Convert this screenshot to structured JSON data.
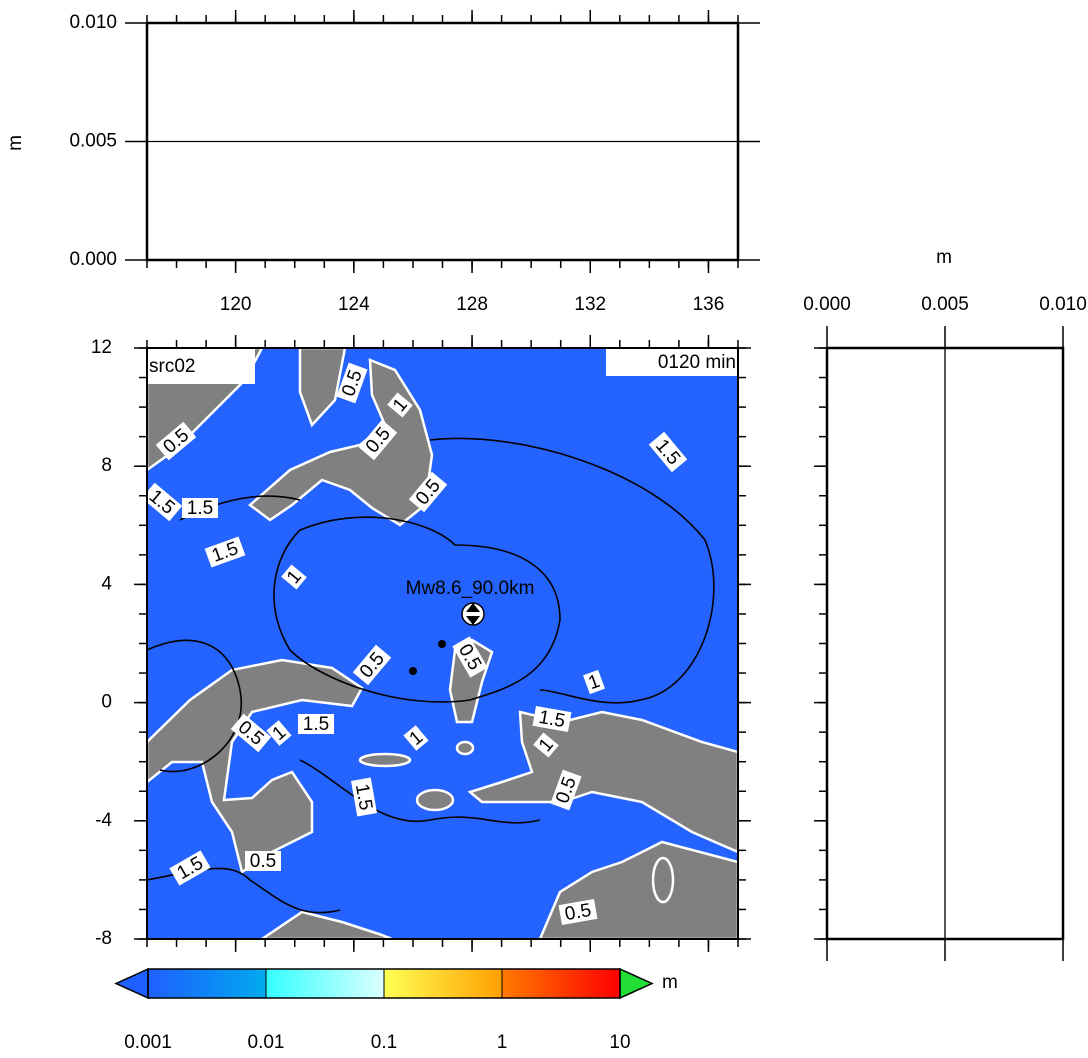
{
  "chart_data": [
    {
      "type": "profile",
      "panel": "top",
      "ylabel": "m",
      "xlim": [
        117,
        137
      ],
      "ylim": [
        0,
        0.01
      ],
      "xticks": [
        120,
        124,
        128,
        132,
        136
      ],
      "yticks": [
        {
          "value": 0,
          "label": "0.000"
        },
        {
          "value": 0.005,
          "label": "0.005"
        },
        {
          "value": 0.01,
          "label": "0.010"
        }
      ],
      "grid": true
    },
    {
      "type": "map",
      "title": "src02",
      "time_label": "0120 min",
      "xlim": [
        117,
        137
      ],
      "ylim": [
        -8,
        12
      ],
      "yticks": [
        -8,
        -4,
        0,
        4,
        8,
        12
      ],
      "source_label": "Mw8.6_90.0km",
      "contour_labels": [
        "0.5",
        "0.5",
        "1",
        "0.5",
        "0.5",
        "1.5",
        "1.5",
        "1.5",
        "1.5",
        "1",
        "0.5",
        "0.5",
        "1",
        "0.5",
        "1",
        "1.5",
        "1",
        "1.5",
        "1",
        "1.5",
        "0.5",
        "1.5",
        "0.5",
        "0.5"
      ],
      "sea_color": "#2563ff",
      "land_color": "#808080"
    },
    {
      "type": "profile",
      "panel": "right",
      "xlabel": "m",
      "xlim": [
        0,
        0.01
      ],
      "ylim": [
        -8,
        12
      ],
      "xticks": [
        {
          "value": 0,
          "label": "0.000"
        },
        {
          "value": 0.005,
          "label": "0.005"
        },
        {
          "value": 0.01,
          "label": "0.010"
        }
      ],
      "grid": true
    },
    {
      "type": "colorbar",
      "label": "m",
      "log": true,
      "ticks": [
        0.001,
        0.01,
        0.1,
        1,
        10
      ],
      "colors": [
        [
          "#1f5fff",
          "#00aaee"
        ],
        [
          "#33ffff",
          "#ddffff"
        ],
        [
          "#ffff55",
          "#ffa000"
        ],
        [
          "#ff7a00",
          "#ff0000"
        ]
      ],
      "under_color": "#1f5fff",
      "over_color": "#22dd33"
    }
  ]
}
